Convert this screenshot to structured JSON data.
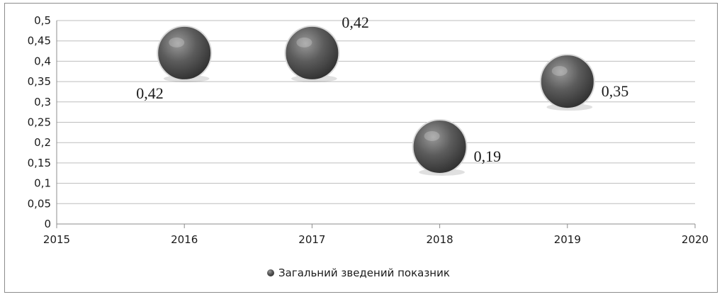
{
  "chart_data": {
    "type": "scatter",
    "x": [
      2016,
      2017,
      2018,
      2019
    ],
    "series": [
      {
        "name": "Загальний зведений показник",
        "values": [
          0.42,
          0.42,
          0.19,
          0.35
        ],
        "labels": [
          "0,42",
          "0,42",
          "0,19",
          "0,35"
        ],
        "label_positions": [
          "below-left",
          "above-right",
          "right",
          "right"
        ]
      }
    ],
    "xlim": [
      2015,
      2020
    ],
    "ylim": [
      0,
      0.5
    ],
    "x_ticks": [
      "2015",
      "2016",
      "2017",
      "2018",
      "2019",
      "2020"
    ],
    "y_ticks": [
      "0",
      "0,05",
      "0,1",
      "0,15",
      "0,2",
      "0,25",
      "0,3",
      "0,35",
      "0,4",
      "0,45",
      "0,5"
    ],
    "grid": true,
    "legend_position": "bottom",
    "marker_color": "#444444"
  }
}
